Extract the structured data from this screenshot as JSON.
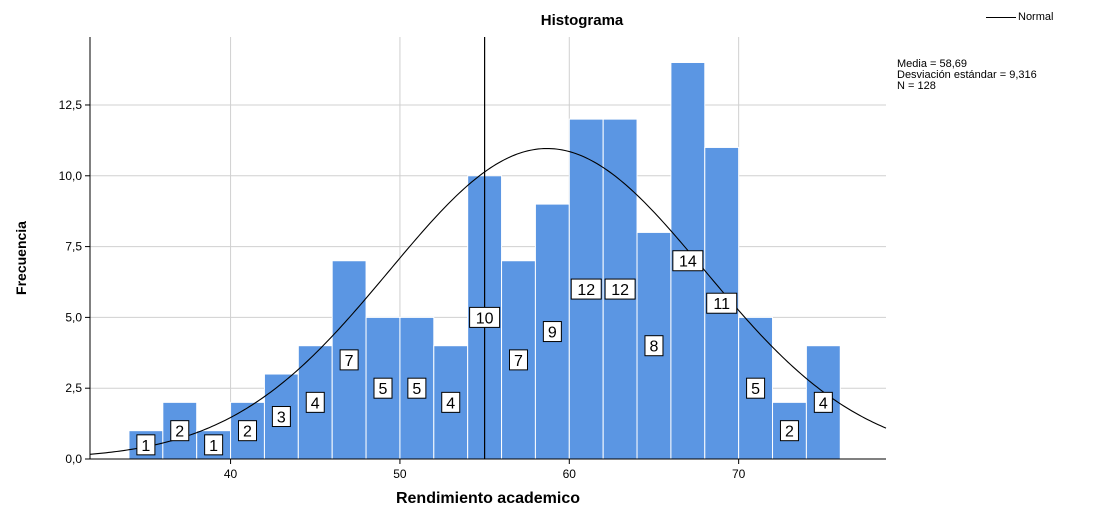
{
  "chart_data": {
    "type": "bar",
    "title": "Histograma",
    "xlabel": "Rendimiento academico",
    "ylabel": "Frecuencia",
    "bin_width": 2,
    "bins": [
      {
        "x0": 34,
        "x1": 36,
        "count": 1
      },
      {
        "x0": 36,
        "x1": 38,
        "count": 2
      },
      {
        "x0": 38,
        "x1": 40,
        "count": 1
      },
      {
        "x0": 40,
        "x1": 42,
        "count": 2
      },
      {
        "x0": 42,
        "x1": 44,
        "count": 3
      },
      {
        "x0": 44,
        "x1": 46,
        "count": 4
      },
      {
        "x0": 46,
        "x1": 48,
        "count": 7
      },
      {
        "x0": 48,
        "x1": 50,
        "count": 5
      },
      {
        "x0": 50,
        "x1": 52,
        "count": 5
      },
      {
        "x0": 52,
        "x1": 54,
        "count": 4
      },
      {
        "x0": 54,
        "x1": 56,
        "count": 10
      },
      {
        "x0": 56,
        "x1": 58,
        "count": 7
      },
      {
        "x0": 58,
        "x1": 60,
        "count": 9
      },
      {
        "x0": 60,
        "x1": 62,
        "count": 12
      },
      {
        "x0": 62,
        "x1": 64,
        "count": 12
      },
      {
        "x0": 64,
        "x1": 66,
        "count": 8
      },
      {
        "x0": 66,
        "x1": 68,
        "count": 14
      },
      {
        "x0": 68,
        "x1": 70,
        "count": 11
      },
      {
        "x0": 70,
        "x1": 72,
        "count": 5
      },
      {
        "x0": 72,
        "x1": 74,
        "count": 2
      },
      {
        "x0": 74,
        "x1": 76,
        "count": 4
      }
    ],
    "xlim": [
      31.7,
      78.7
    ],
    "ylim": [
      0,
      14.9
    ],
    "x_ticks": [
      40,
      50,
      60,
      70
    ],
    "x_tick_labels": [
      "40",
      "50",
      "60",
      "70"
    ],
    "y_ticks": [
      0,
      2.5,
      5,
      7.5,
      10,
      12.5
    ],
    "y_tick_labels": [
      "0,0",
      "2,5",
      "5,0",
      "7,5",
      "10,0",
      "12,5"
    ],
    "reference_line_x": 55,
    "normal_curve": {
      "mean": 58.69,
      "sd": 9.316,
      "n": 128,
      "bin_width": 2
    },
    "legend": {
      "entries": [
        "Normal"
      ],
      "position": "top-right"
    },
    "stats_text": [
      "Media = 58,69",
      "Desviación estándar = 9,316",
      "N = 128"
    ],
    "grid": true,
    "colors": {
      "bar": "#5b96e3",
      "bar_edge": "#ffffff",
      "curve": "#000000",
      "grid": "#d0d0d0",
      "axis": "#000000"
    }
  }
}
